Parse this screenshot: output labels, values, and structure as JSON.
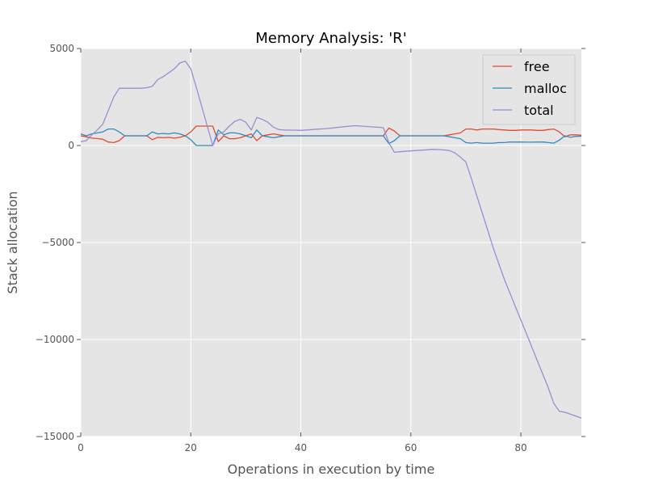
{
  "chart_data": {
    "type": "line",
    "title": "Memory Analysis:  'R'",
    "xlabel": "Operations in execution by time",
    "ylabel": "Stack allocation",
    "xlim": [
      0,
      91
    ],
    "ylim": [
      -15000,
      5000
    ],
    "xticks": [
      0,
      20,
      40,
      60,
      80
    ],
    "yticks": [
      -15000,
      -10000,
      -5000,
      0,
      5000
    ],
    "xtick_labels": [
      "0",
      "20",
      "40",
      "60",
      "80"
    ],
    "ytick_labels": [
      "−15000",
      "−10000",
      "−5000",
      "0",
      "5000"
    ],
    "grid": true,
    "legend": "top-right",
    "colors": {
      "background": "#e5e5e5",
      "grid": "#ffffff",
      "free": "#e24a33",
      "malloc": "#348abd",
      "total": "#988ed5"
    },
    "series": [
      {
        "name": "free",
        "x": [
          0,
          1,
          2,
          3,
          4,
          5,
          6,
          7,
          8,
          9,
          10,
          11,
          12,
          13,
          14,
          15,
          16,
          17,
          18,
          19,
          20,
          21,
          22,
          23,
          24,
          25,
          26,
          27,
          28,
          29,
          30,
          31,
          32,
          33,
          34,
          35,
          36,
          37,
          38,
          39,
          40,
          41,
          42,
          43,
          44,
          45,
          46,
          47,
          48,
          49,
          50,
          51,
          52,
          53,
          54,
          55,
          56,
          57,
          58,
          59,
          60,
          61,
          62,
          63,
          64,
          65,
          66,
          67,
          68,
          69,
          70,
          71,
          72,
          73,
          74,
          75,
          76,
          77,
          78,
          79,
          80,
          81,
          82,
          83,
          84,
          85,
          86,
          87,
          88,
          89,
          90,
          91
        ],
        "y": [
          500,
          450,
          380,
          360,
          320,
          180,
          150,
          250,
          500,
          500,
          500,
          500,
          500,
          300,
          420,
          400,
          420,
          380,
          420,
          500,
          700,
          1000,
          1000,
          1000,
          1000,
          200,
          500,
          350,
          350,
          400,
          500,
          600,
          250,
          500,
          550,
          600,
          550,
          500,
          500,
          500,
          500,
          500,
          500,
          500,
          500,
          500,
          500,
          500,
          500,
          500,
          500,
          500,
          500,
          500,
          500,
          500,
          900,
          750,
          500,
          500,
          500,
          500,
          500,
          500,
          500,
          500,
          500,
          550,
          600,
          650,
          850,
          850,
          800,
          850,
          850,
          850,
          820,
          800,
          780,
          780,
          800,
          800,
          800,
          780,
          780,
          820,
          850,
          700,
          450,
          550,
          550,
          530
        ]
      },
      {
        "name": "malloc",
        "x": [
          0,
          1,
          2,
          3,
          4,
          5,
          6,
          7,
          8,
          9,
          10,
          11,
          12,
          13,
          14,
          15,
          16,
          17,
          18,
          19,
          20,
          21,
          22,
          23,
          24,
          25,
          26,
          27,
          28,
          29,
          30,
          31,
          32,
          33,
          34,
          35,
          36,
          37,
          38,
          39,
          40,
          41,
          42,
          43,
          44,
          45,
          46,
          47,
          48,
          49,
          50,
          51,
          52,
          53,
          54,
          55,
          56,
          57,
          58,
          59,
          60,
          61,
          62,
          63,
          64,
          65,
          66,
          67,
          68,
          69,
          70,
          71,
          72,
          73,
          74,
          75,
          76,
          77,
          78,
          79,
          80,
          81,
          82,
          83,
          84,
          85,
          86,
          87,
          88,
          89,
          90,
          91
        ],
        "y": [
          600,
          500,
          600,
          650,
          700,
          850,
          850,
          700,
          500,
          500,
          500,
          500,
          500,
          700,
          600,
          620,
          600,
          650,
          600,
          500,
          300,
          0,
          0,
          0,
          0,
          800,
          550,
          650,
          650,
          600,
          500,
          400,
          800,
          500,
          450,
          400,
          450,
          500,
          500,
          500,
          500,
          500,
          500,
          500,
          500,
          500,
          500,
          500,
          500,
          500,
          500,
          500,
          500,
          500,
          500,
          500,
          100,
          250,
          500,
          500,
          500,
          500,
          500,
          500,
          500,
          500,
          500,
          450,
          400,
          350,
          150,
          120,
          150,
          120,
          120,
          120,
          150,
          150,
          180,
          180,
          180,
          170,
          170,
          180,
          180,
          150,
          120,
          280,
          500,
          420,
          470,
          480
        ]
      },
      {
        "name": "total",
        "x": [
          0,
          1,
          2,
          3,
          4,
          5,
          6,
          7,
          8,
          9,
          10,
          11,
          12,
          13,
          14,
          15,
          16,
          17,
          18,
          19,
          20,
          21,
          22,
          23,
          24,
          25,
          26,
          27,
          28,
          29,
          30,
          31,
          32,
          33,
          34,
          35,
          36,
          37,
          38,
          39,
          40,
          41,
          42,
          43,
          44,
          45,
          46,
          47,
          48,
          49,
          50,
          51,
          52,
          53,
          54,
          55,
          56,
          57,
          58,
          59,
          60,
          61,
          62,
          63,
          64,
          65,
          66,
          67,
          68,
          69,
          70,
          71,
          72,
          73,
          74,
          75,
          76,
          77,
          78,
          79,
          80,
          81,
          82,
          83,
          84,
          85,
          86,
          87,
          88,
          89,
          90,
          91
        ],
        "y": [
          200,
          250,
          550,
          800,
          1100,
          1800,
          2500,
          2950,
          2950,
          2950,
          2950,
          2950,
          2980,
          3050,
          3400,
          3550,
          3750,
          3950,
          4250,
          4350,
          3950,
          3000,
          2000,
          1000,
          0,
          600,
          700,
          1000,
          1250,
          1350,
          1200,
          800,
          1450,
          1350,
          1200,
          950,
          820,
          800,
          790,
          790,
          780,
          800,
          820,
          840,
          860,
          880,
          910,
          940,
          970,
          1000,
          1020,
          1000,
          980,
          960,
          940,
          920,
          150,
          -350,
          -320,
          -300,
          -280,
          -260,
          -240,
          -220,
          -200,
          -210,
          -230,
          -260,
          -380,
          -600,
          -850,
          -1700,
          -2600,
          -3500,
          -4400,
          -5300,
          -6100,
          -6900,
          -7600,
          -8300,
          -9000,
          -9700,
          -10400,
          -11100,
          -11800,
          -12500,
          -13300,
          -13700,
          -13750,
          -13850,
          -13950,
          -14050
        ]
      }
    ]
  }
}
